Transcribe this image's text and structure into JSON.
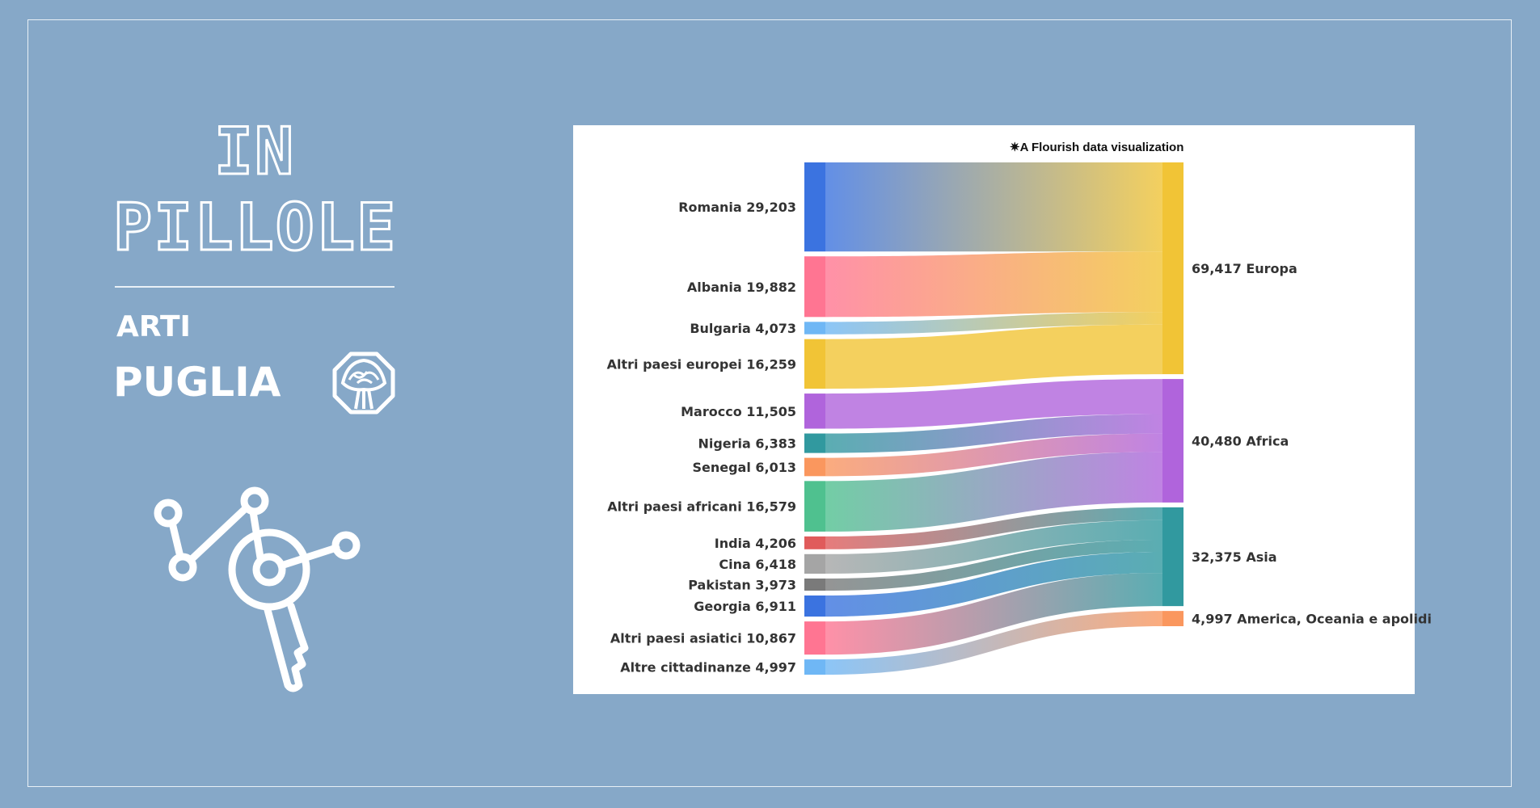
{
  "brand": {
    "title_line1": "IN",
    "title_line2": "PILLOLE",
    "subtitle": "ARTI",
    "region": "PUGLIA",
    "emblem_icon": "octagon-tree-emblem-icon",
    "main_icon": "network-key-icon"
  },
  "credit": "✷A Flourish data visualization",
  "chart_data": {
    "type": "sankey",
    "sources": [
      {
        "name": "Romania",
        "value": 29203,
        "label": "Romania 29,203",
        "color": "#3b73e0",
        "target": "Europa"
      },
      {
        "name": "Albania",
        "value": 19882,
        "label": "Albania 19,882",
        "color": "#ff7592",
        "target": "Europa"
      },
      {
        "name": "Bulgaria",
        "value": 4073,
        "label": "Bulgaria 4,073",
        "color": "#6fb7f5",
        "target": "Europa"
      },
      {
        "name": "Altri paesi europei",
        "value": 16259,
        "label": "Altri paesi europei 16,259",
        "color": "#f1c436",
        "target": "Europa"
      },
      {
        "name": "Marocco",
        "value": 11505,
        "label": "Marocco 11,505",
        "color": "#b064dc",
        "target": "Africa"
      },
      {
        "name": "Nigeria",
        "value": 6383,
        "label": "Nigeria 6,383",
        "color": "#31999f",
        "target": "Africa"
      },
      {
        "name": "Senegal",
        "value": 6013,
        "label": "Senegal 6,013",
        "color": "#fa975e",
        "target": "Africa"
      },
      {
        "name": "Altri paesi africani",
        "value": 16579,
        "label": "Altri paesi africani 16,579",
        "color": "#4fc18f",
        "target": "Africa"
      },
      {
        "name": "India",
        "value": 4206,
        "label": "India 4,206",
        "color": "#e05b5b",
        "target": "Asia"
      },
      {
        "name": "Cina",
        "value": 6418,
        "label": "Cina 6,418",
        "color": "#a5a5a5",
        "target": "Asia"
      },
      {
        "name": "Pakistan",
        "value": 3973,
        "label": "Pakistan 3,973",
        "color": "#7a7a7a",
        "target": "Asia"
      },
      {
        "name": "Georgia",
        "value": 6911,
        "label": "Georgia 6,911",
        "color": "#3b73e0",
        "target": "Asia"
      },
      {
        "name": "Altri paesi asiatici",
        "value": 10867,
        "label": "Altri paesi asiatici 10,867",
        "color": "#ff7592",
        "target": "Asia"
      },
      {
        "name": "Altre cittadinanze",
        "value": 4997,
        "label": "Altre cittadinanze 4,997",
        "color": "#6fb7f5",
        "target": "America, Oceania e apolidi"
      }
    ],
    "targets": [
      {
        "name": "Europa",
        "value": 69417,
        "label": "69,417 Europa",
        "color": "#f1c436"
      },
      {
        "name": "Africa",
        "value": 40480,
        "label": "40,480 Africa",
        "color": "#b064dc"
      },
      {
        "name": "Asia",
        "value": 32375,
        "label": "32,375 Asia",
        "color": "#31999f"
      },
      {
        "name": "America, Oceania e apolidi",
        "value": 4997,
        "label": "4,997 America, Oceania e apolidi",
        "color": "#fa975e"
      }
    ]
  }
}
